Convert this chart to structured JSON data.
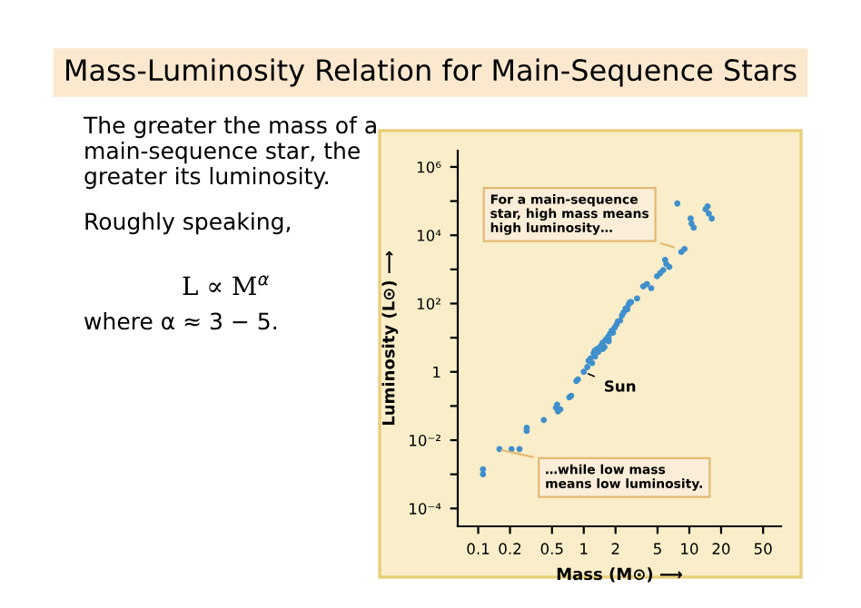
{
  "chart_data": {
    "type": "scatter",
    "title": "Mass-Luminosity Relation for Main-Sequence Stars",
    "xlabel": "Mass (M⊙) ⟶",
    "ylabel": "Luminosity (L⊙) ⟶",
    "log": "xy",
    "grid": false,
    "legend": false,
    "marker": "circle",
    "xlim": [
      0.064,
      74
    ],
    "ylim": [
      3e-05,
      3000000.0
    ],
    "xticks": [
      0.1,
      0.2,
      0.5,
      1,
      2,
      5,
      10,
      20,
      50
    ],
    "yticks": [
      {
        "value": 0.0001,
        "label": "10⁻⁴"
      },
      {
        "value": 0.001,
        "label": null
      },
      {
        "value": 0.01,
        "label": "10⁻²"
      },
      {
        "value": 0.1,
        "label": null
      },
      {
        "value": 1,
        "label": "1"
      },
      {
        "value": 10,
        "label": null
      },
      {
        "value": 100,
        "label": "10²"
      },
      {
        "value": 1000,
        "label": null
      },
      {
        "value": 10000,
        "label": "10⁴"
      },
      {
        "value": 100000,
        "label": null
      },
      {
        "value": 1000000,
        "label": "10⁶"
      }
    ],
    "series": [
      {
        "color": "#3f8fcc",
        "x": [
          0.111,
          0.111,
          0.159,
          0.207,
          0.246,
          0.288,
          0.288,
          0.418,
          0.545,
          0.56,
          0.6,
          0.57,
          0.73,
          0.76,
          0.85,
          0.88,
          1.0,
          1.08,
          1.11,
          1.16,
          1.2,
          1.24,
          1.28,
          1.34,
          1.37,
          1.45,
          1.51,
          1.57,
          1.61,
          1.7,
          1.72,
          1.77,
          1.84,
          1.89,
          1.96,
          2.04,
          2.1,
          2.21,
          2.3,
          2.39,
          2.49,
          2.59,
          2.66,
          2.74,
          2.81,
          1.27,
          1.51,
          1.72,
          3.2,
          3.66,
          3.96,
          4.35,
          4.95,
          5.3,
          5.66,
          6.05,
          6.46,
          5.9,
          8.4,
          9.0,
          7.7,
          10.3,
          10.5,
          11,
          14.3,
          15.3,
          16.3,
          14.9
        ],
        "values": [
          0.0014,
          0.001,
          0.0055,
          0.0055,
          0.0055,
          0.0186,
          0.023,
          0.039,
          0.089,
          0.11,
          0.08,
          0.07,
          0.18,
          0.2,
          0.54,
          0.6,
          1.0,
          1.38,
          2.1,
          2.5,
          1.8,
          3.5,
          2.8,
          4.7,
          3.8,
          5.8,
          7.1,
          5.3,
          8.7,
          10.7,
          9.4,
          13,
          16,
          14,
          19.6,
          24,
          29.5,
          32,
          45,
          55,
          72,
          68,
          93,
          110,
          110,
          4.2,
          4.7,
          7.9,
          141,
          316,
          372,
          282,
          630,
          776,
          955,
          1450,
          1180,
          1900,
          3240,
          3980,
          85000,
          31000,
          22000,
          16600,
          58000,
          43000,
          31000,
          70000
        ]
      }
    ],
    "annotations": [
      "The greater the mass of a\nmain-sequence star, the\ngreater its luminosity.",
      "Roughly speaking,",
      "L ∝ M$^{α}$",
      "where α ≈ 3 − 5.",
      {
        "text": "Sun",
        "x": 1,
        "y": 1
      },
      {
        "text": "For a main-sequence\nstar, high mass means\nhigh luminosity…",
        "x": 7.9,
        "y": 4000
      },
      {
        "text": "…while low mass\nmeans low luminosity.",
        "x": 0.15,
        "y": 0.0055
      }
    ]
  }
}
